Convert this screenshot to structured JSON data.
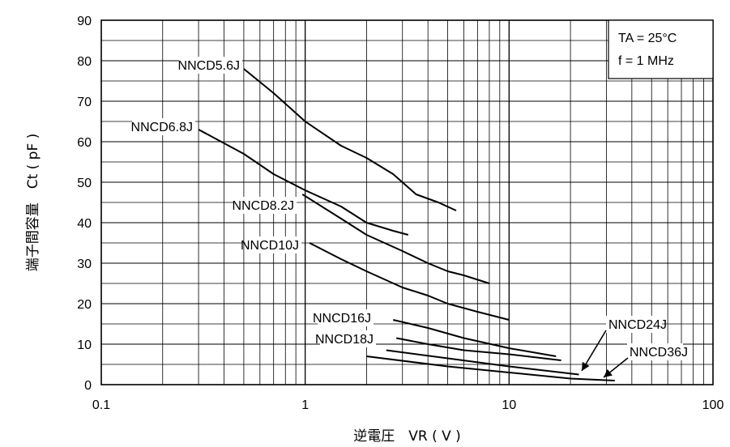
{
  "chart_data": {
    "type": "line",
    "xscale": "log",
    "xlim": [
      0.1,
      100
    ],
    "ylim": [
      0,
      90
    ],
    "xticks": [
      0.1,
      1,
      10,
      100
    ],
    "xtick_labels": [
      "0.1",
      "1",
      "10",
      "100"
    ],
    "yticks": [
      0,
      10,
      20,
      30,
      40,
      50,
      60,
      70,
      80,
      90
    ],
    "ytick_labels": [
      "0",
      "10",
      "20",
      "30",
      "40",
      "50",
      "60",
      "70",
      "80",
      "90"
    ],
    "grid": true,
    "xlabel": "逆電圧　VR ( V )",
    "ylabel": "端子間容量　Ct ( pF )",
    "conditions": [
      "TA = 25°C",
      "f = 1 MHz"
    ],
    "series": [
      {
        "name": "NNCD5.6J",
        "x": [
          0.5,
          0.7,
          1.0,
          1.5,
          2.0,
          2.7,
          3.5,
          4.5,
          5.5
        ],
        "y": [
          78,
          72,
          65,
          59,
          56,
          52,
          47,
          45,
          43
        ]
      },
      {
        "name": "NNCD6.8J",
        "x": [
          0.3,
          0.5,
          0.7,
          1.0,
          1.5,
          2.0,
          2.7,
          3.2
        ],
        "y": [
          63,
          57,
          52,
          48,
          44,
          40,
          38,
          37
        ]
      },
      {
        "name": "NNCD8.2J",
        "x": [
          0.97,
          1.5,
          2.0,
          3.0,
          4.0,
          5.0,
          6.0,
          8.0
        ],
        "y": [
          47,
          41,
          37,
          33,
          30,
          28,
          27,
          25
        ]
      },
      {
        "name": "NNCD10J",
        "x": [
          1.05,
          1.5,
          2.0,
          3.0,
          4.0,
          5.0,
          7.0,
          10.0
        ],
        "y": [
          35,
          31,
          28,
          24,
          22,
          20,
          18,
          16
        ]
      },
      {
        "name": "NNCD16J",
        "x": [
          2.7,
          4.0,
          6.0,
          10.0,
          17.0
        ],
        "y": [
          16,
          14,
          11.5,
          9,
          7
        ]
      },
      {
        "name": "NNCD18J",
        "x": [
          2.8,
          4.0,
          6.0,
          10.0,
          18.0
        ],
        "y": [
          11.5,
          10,
          8.5,
          7.5,
          6
        ]
      },
      {
        "name": "NNCD24J",
        "x": [
          2.5,
          5.0,
          10.0,
          22.0
        ],
        "y": [
          8.5,
          6.5,
          4.5,
          2.5
        ]
      },
      {
        "name": "NNCD36J",
        "x": [
          2.0,
          5.0,
          10.0,
          20.0,
          33.0
        ],
        "y": [
          7,
          4.5,
          3.0,
          1.5,
          1
        ]
      }
    ],
    "labels": [
      {
        "text": "NNCD5.6J"
      },
      {
        "text": "NNCD6.8J"
      },
      {
        "text": "NNCD8.2J"
      },
      {
        "text": "NNCD10J"
      },
      {
        "text": "NNCD16J"
      },
      {
        "text": "NNCD18J"
      },
      {
        "text": "NNCD24J"
      },
      {
        "text": "NNCD36J"
      }
    ]
  }
}
